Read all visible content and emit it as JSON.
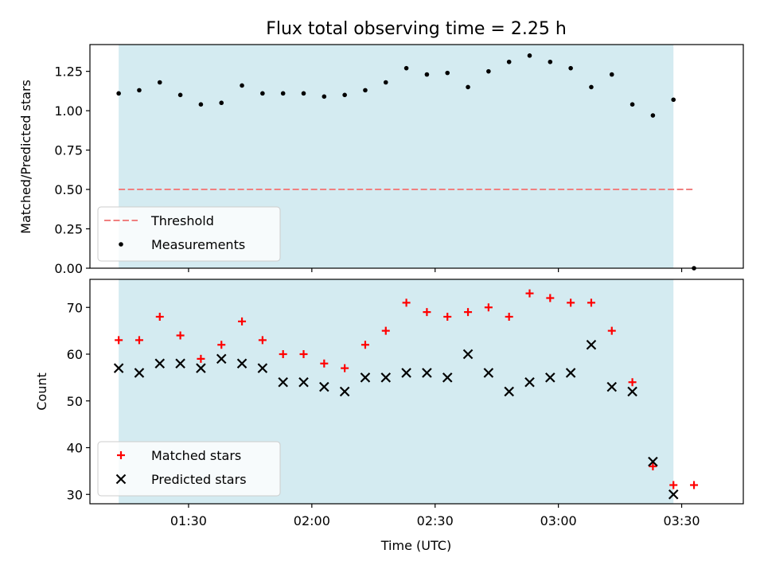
{
  "chart_data": [
    {
      "type": "scatter",
      "title": "Flux total observing time = 2.25 h",
      "ylabel": "Matched/Predicted stars",
      "xlabel": "",
      "ylim": [
        0,
        1.42
      ],
      "yticks": [
        "0.00",
        "0.25",
        "0.50",
        "0.75",
        "1.00",
        "1.25"
      ],
      "ytick_values": [
        0,
        0.25,
        0.5,
        0.75,
        1.0,
        1.25
      ],
      "xlim": [
        66,
        225
      ],
      "xticks": [
        "01:30",
        "02:00",
        "02:30",
        "03:00",
        "03:30"
      ],
      "xtick_values": [
        90,
        120,
        150,
        180,
        210
      ],
      "shaded_region": [
        73,
        208
      ],
      "shade_color": "#d4ebf1",
      "threshold": {
        "name": "Threshold",
        "value": 0.5,
        "x_range": [
          73,
          213
        ],
        "color": "#f08080"
      },
      "series": [
        {
          "name": "Measurements",
          "color": "#000000",
          "x": [
            73,
            78,
            83,
            88,
            93,
            98,
            103,
            108,
            113,
            118,
            123,
            128,
            133,
            138,
            143,
            148,
            153,
            158,
            163,
            168,
            173,
            178,
            183,
            188,
            193,
            198,
            203,
            208,
            213
          ],
          "y": [
            1.11,
            1.13,
            1.18,
            1.1,
            1.04,
            1.05,
            1.16,
            1.11,
            1.11,
            1.11,
            1.09,
            1.1,
            1.13,
            1.18,
            1.27,
            1.23,
            1.24,
            1.15,
            1.25,
            1.31,
            1.35,
            1.31,
            1.27,
            1.15,
            1.23,
            1.04,
            0.97,
            1.07,
            0.0
          ]
        }
      ]
    },
    {
      "type": "scatter",
      "title": "",
      "ylabel": "Count",
      "xlabel": "Time (UTC)",
      "ylim": [
        28,
        76
      ],
      "yticks": [
        "30",
        "40",
        "50",
        "60",
        "70"
      ],
      "ytick_values": [
        30,
        40,
        50,
        60,
        70
      ],
      "xlim": [
        66,
        225
      ],
      "xticks": [
        "01:30",
        "02:00",
        "02:30",
        "03:00",
        "03:30"
      ],
      "xtick_values": [
        90,
        120,
        150,
        180,
        210
      ],
      "shaded_region": [
        73,
        208
      ],
      "shade_color": "#d4ebf1",
      "series": [
        {
          "name": "Matched stars",
          "marker": "plus",
          "color": "#ff0000",
          "x": [
            73,
            78,
            83,
            88,
            93,
            98,
            103,
            108,
            113,
            118,
            123,
            128,
            133,
            138,
            143,
            148,
            153,
            158,
            163,
            168,
            173,
            178,
            183,
            188,
            193,
            198,
            203,
            208,
            213
          ],
          "y": [
            63,
            63,
            68,
            64,
            59,
            62,
            67,
            63,
            60,
            60,
            58,
            57,
            62,
            65,
            71,
            69,
            68,
            69,
            70,
            68,
            73,
            72,
            71,
            71,
            65,
            54,
            36,
            32,
            32
          ]
        },
        {
          "name": "Predicted stars",
          "marker": "x",
          "color": "#000000",
          "x": [
            73,
            78,
            83,
            88,
            93,
            98,
            103,
            108,
            113,
            118,
            123,
            128,
            133,
            138,
            143,
            148,
            153,
            158,
            163,
            168,
            173,
            178,
            183,
            188,
            193,
            198,
            203,
            208
          ],
          "y": [
            57,
            56,
            58,
            58,
            57,
            59,
            58,
            57,
            54,
            54,
            53,
            52,
            55,
            55,
            56,
            56,
            55,
            60,
            56,
            52,
            54,
            55,
            56,
            62,
            53,
            52,
            37,
            30
          ]
        }
      ]
    }
  ]
}
